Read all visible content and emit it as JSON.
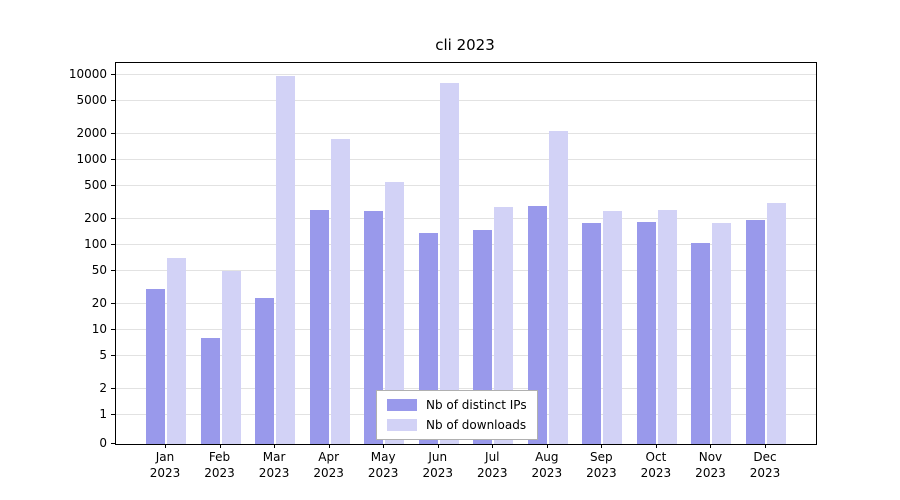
{
  "chart_data": {
    "type": "bar",
    "title": "cli 2023",
    "categories": [
      "Jan 2023",
      "Feb 2023",
      "Mar 2023",
      "Apr 2023",
      "May 2023",
      "Jun 2023",
      "Jul 2023",
      "Aug 2023",
      "Sep 2023",
      "Oct 2023",
      "Nov 2023",
      "Dec 2023"
    ],
    "series": [
      {
        "name": "Nb of distinct IPs",
        "color": "#9999eb",
        "values": [
          30,
          8,
          24,
          260,
          250,
          140,
          150,
          290,
          180,
          185,
          105,
          195
        ]
      },
      {
        "name": "Nb of downloads",
        "color": "#d2d2f6",
        "values": [
          70,
          50,
          9800,
          1750,
          550,
          8000,
          280,
          2200,
          250,
          255,
          180,
          310
        ]
      }
    ],
    "xlabel": "",
    "ylabel": "",
    "yscale": "log",
    "ylim": [
      0,
      10000
    ],
    "yticks": [
      0,
      1,
      2,
      5,
      10,
      20,
      50,
      100,
      200,
      500,
      1000,
      2000,
      5000,
      10000
    ],
    "grid": true,
    "grid_color": "#e2e2e2",
    "legend_position": "lower center"
  }
}
